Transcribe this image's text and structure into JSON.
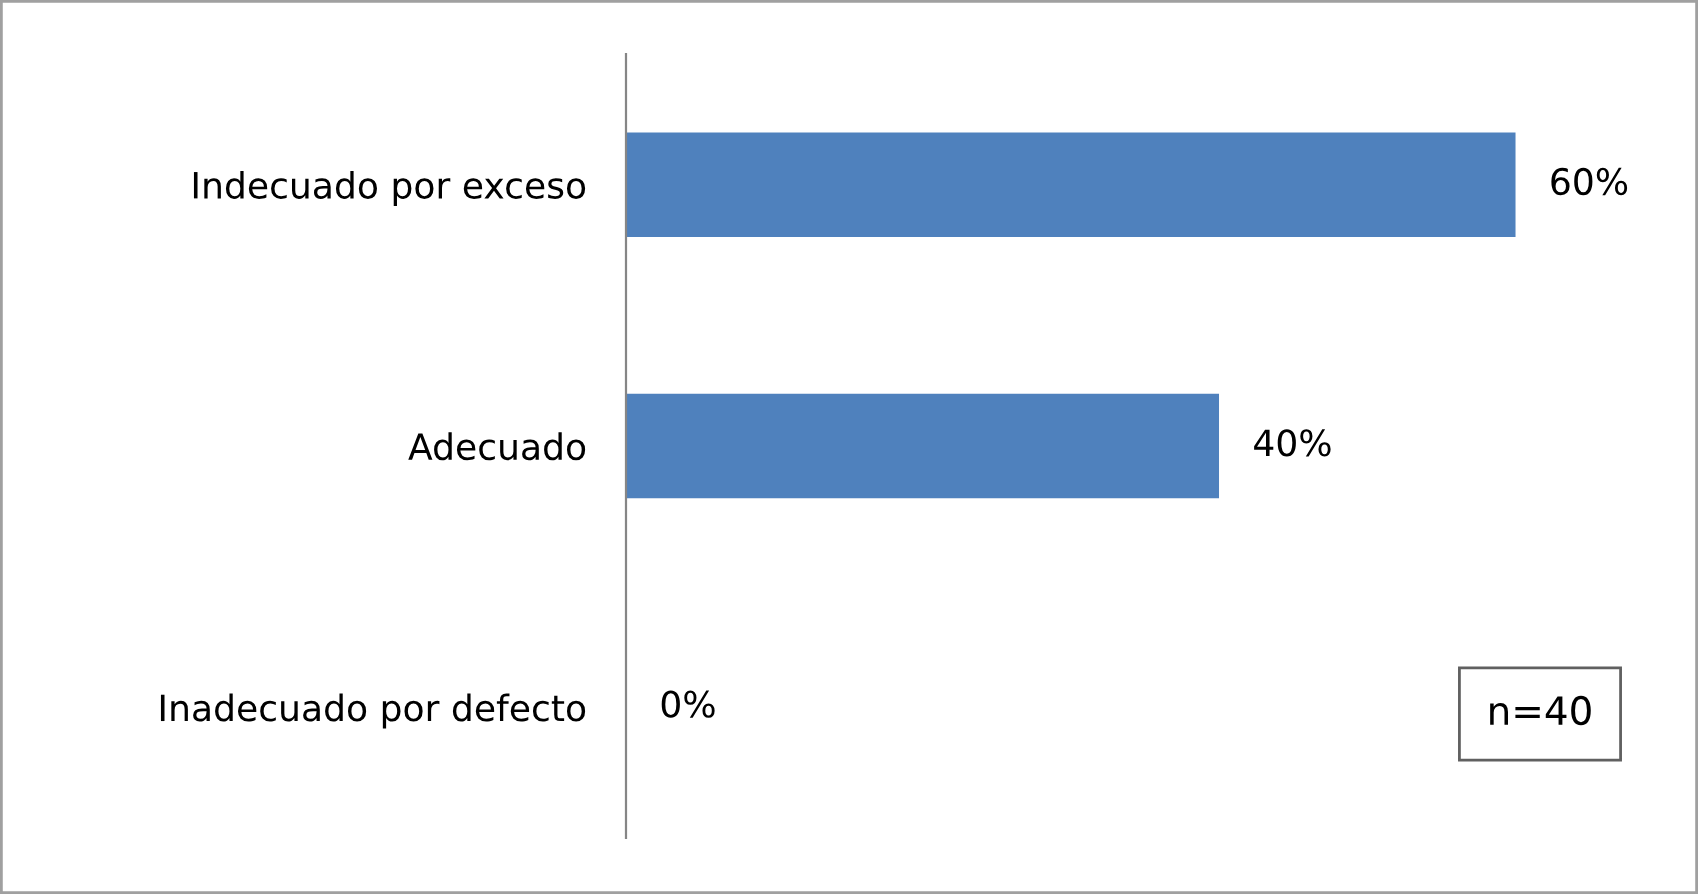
{
  "chart_data": {
    "type": "bar",
    "orientation": "horizontal",
    "categories": [
      "Indecuado por exceso",
      "Adecuado",
      "Inadecuado por defecto"
    ],
    "values": [
      60,
      40,
      0
    ],
    "color": "#4f81bd",
    "data_labels": true,
    "value_labels": [
      "60%",
      "40%",
      "0%"
    ],
    "tick_labels": "y",
    "grid": false,
    "legend": false,
    "annotations": [
      "n=40"
    ]
  }
}
